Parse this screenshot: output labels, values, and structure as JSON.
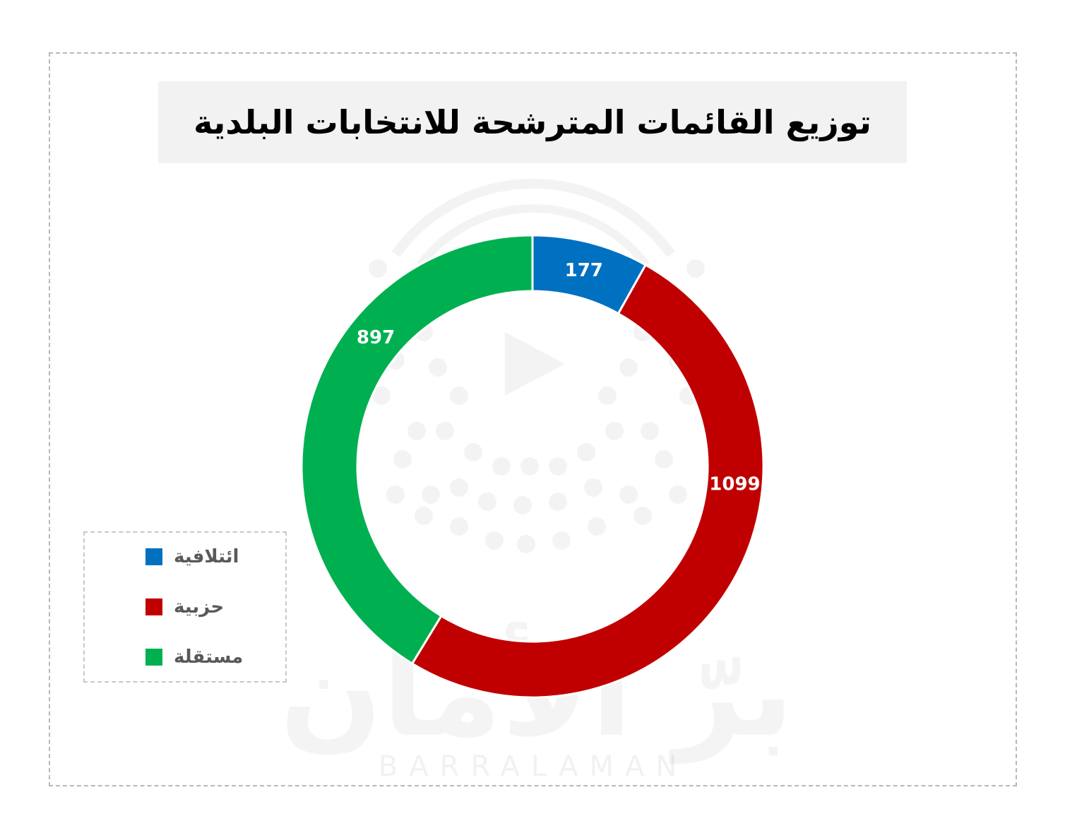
{
  "title": "توزيع القائمات المترشحة للانتخابات البلدية",
  "watermark": {
    "brand": "برّ الأمان",
    "brand_latin": "BARRALAMAN"
  },
  "chart_data": {
    "type": "pie",
    "variant": "donut",
    "title": "توزيع القائمات المترشحة للانتخابات البلدية",
    "categories": [
      "ائتلافية",
      "حزبية",
      "مستقلة"
    ],
    "values": [
      177,
      1099,
      897
    ],
    "colors": [
      "#0070C0",
      "#C00000",
      "#00B050"
    ],
    "data_labels": [
      "177",
      "1099",
      "897"
    ],
    "legend_position": "bottom-left",
    "start_angle": "top",
    "direction": "clockwise"
  },
  "legend": {
    "items": [
      {
        "label": "ائتلافية",
        "color": "#0070C0"
      },
      {
        "label": "حزبية",
        "color": "#C00000"
      },
      {
        "label": "مستقلة",
        "color": "#00B050"
      }
    ]
  }
}
